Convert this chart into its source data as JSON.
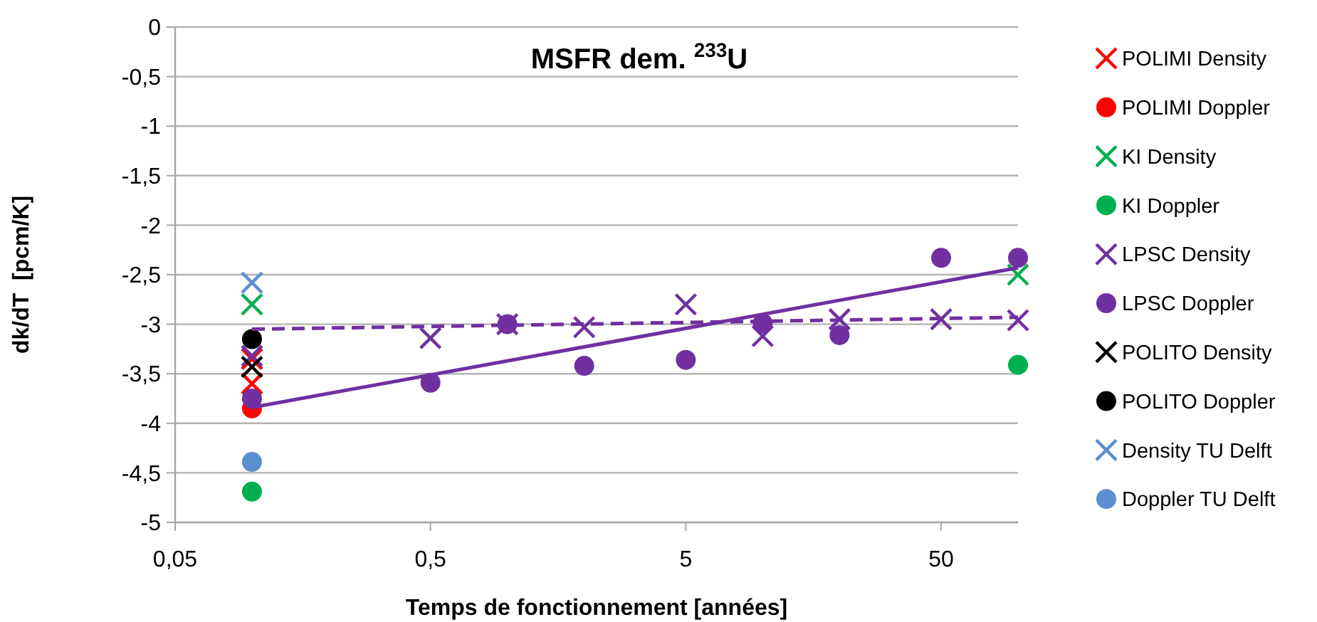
{
  "chart_data": {
    "type": "scatter",
    "title": "MSFR dem. $^{233}$U",
    "xlabel": "Temps de fonctionnement [années]",
    "ylabel": "dk/dT  [pcm/K]",
    "log": "x",
    "grid": "y",
    "legend": "right",
    "xlim": [
      0.05,
      100
    ],
    "xticks": [
      {
        "value": 0.05,
        "label": "0,05"
      },
      {
        "value": 0.5,
        "label": "0,5"
      },
      5,
      50
    ],
    "ylim": [
      -5,
      0
    ],
    "yticks": [
      {
        "value": -5,
        "label": "-5"
      },
      {
        "value": -4.5,
        "label": "-4,5"
      },
      {
        "value": -4,
        "label": "-4"
      },
      {
        "value": -3.5,
        "label": "-3,5"
      },
      {
        "value": -3,
        "label": "-3"
      },
      {
        "value": -2.5,
        "label": "-2,5"
      },
      {
        "value": -2,
        "label": "-2"
      },
      {
        "value": -1.5,
        "label": "-1,5"
      },
      {
        "value": -1,
        "label": "-1"
      },
      {
        "value": -0.5,
        "label": "-0,5"
      },
      {
        "value": 0,
        "label": "0"
      }
    ],
    "series": [
      {
        "name": "POLIMI Density",
        "color": "#ff0000",
        "marker": "cross",
        "x": [
          0.1,
          0.1
        ],
        "values": [
          -3.35,
          -3.6
        ]
      },
      {
        "name": "POLIMI Doppler",
        "color": "#ff0000",
        "marker": "circle",
        "x": [
          0.1
        ],
        "values": [
          -3.85
        ]
      },
      {
        "name": "KI Density",
        "color": "#00b050",
        "marker": "cross",
        "x": [
          0.1,
          100
        ],
        "values": [
          -2.8,
          -2.5
        ]
      },
      {
        "name": "KI Doppler",
        "color": "#00b050",
        "marker": "circle",
        "x": [
          0.1,
          100
        ],
        "values": [
          -4.69,
          -3.41
        ]
      },
      {
        "name": "LPSC Density",
        "color": "#7030a0",
        "marker": "cross",
        "x": [
          0.1,
          0.5,
          1,
          2,
          5,
          10,
          20,
          50,
          100
        ],
        "values": [
          -3.32,
          -3.14,
          -3.0,
          -3.03,
          -2.8,
          -3.12,
          -2.95,
          -2.95,
          -2.96
        ]
      },
      {
        "name": "LPSC Doppler",
        "color": "#7030a0",
        "marker": "circle",
        "x": [
          0.1,
          0.5,
          1,
          2,
          5,
          10,
          20,
          50,
          100
        ],
        "values": [
          -3.75,
          -3.59,
          -3.0,
          -3.42,
          -3.36,
          -2.99,
          -3.11,
          -2.33,
          -2.33
        ]
      },
      {
        "name": "POLITO Density",
        "color": "#000000",
        "marker": "cross",
        "x": [
          0.1
        ],
        "values": [
          -3.43
        ]
      },
      {
        "name": "POLITO Doppler",
        "color": "#000000",
        "marker": "circle",
        "x": [
          0.1
        ],
        "values": [
          -3.15
        ]
      },
      {
        "name": "Density TU Delft",
        "color": "#5b8fd0",
        "marker": "cross",
        "x": [
          0.1
        ],
        "values": [
          -2.58
        ]
      },
      {
        "name": "Doppler TU Delft",
        "color": "#5b8fd0",
        "marker": "circle",
        "x": [
          0.1
        ],
        "values": [
          -4.39
        ]
      },
      {
        "type": "line",
        "color": "#7030a0",
        "line_style": "dashed",
        "marker": "none",
        "x": [
          0.1,
          100
        ],
        "values": [
          -3.05,
          -2.93
        ]
      },
      {
        "type": "line",
        "color": "#7030a0",
        "line_style": "solid",
        "marker": "none",
        "x": [
          0.1,
          100
        ],
        "values": [
          -3.84,
          -2.43
        ]
      }
    ]
  }
}
